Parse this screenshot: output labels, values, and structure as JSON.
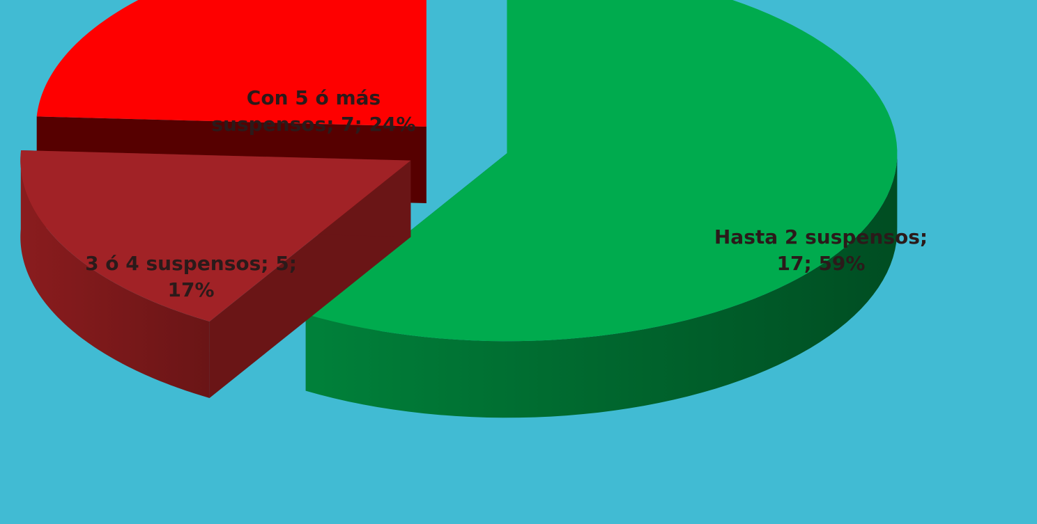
{
  "chart_data": {
    "type": "pie",
    "title": "",
    "legend": "none",
    "style": "3d-exploded",
    "slices": [
      {
        "label": "Hasta 2 suspensos",
        "value": 17,
        "percent": 59,
        "label_lines": [
          "Hasta 2 suspensos;",
          "17; 59%"
        ],
        "color": "#00ab4e",
        "side_color": "#00813a",
        "side_dark": "#004d22"
      },
      {
        "label": "3 ó 4 suspensos",
        "value": 5,
        "percent": 17,
        "label_lines": [
          "3 ó 4 suspensos; 5;",
          "17%"
        ],
        "color": "#a12226",
        "side_color": "#8a1c1e",
        "side_dark": "#6a1516"
      },
      {
        "label": "Con 5 ó más suspensos",
        "value": 7,
        "percent": 24,
        "label_lines": [
          "Con 5 ó más",
          "suspensos; 7; 24%"
        ],
        "color": "#fe0000",
        "side_color": "#6e0000",
        "side_dark": "#560000"
      }
    ]
  }
}
